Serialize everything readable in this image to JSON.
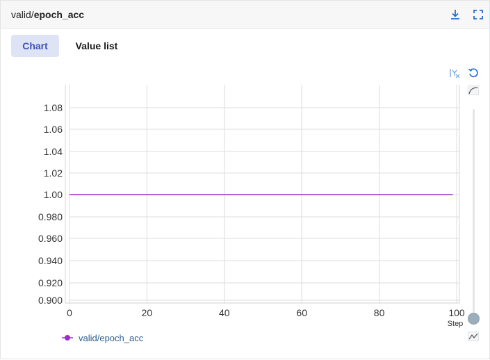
{
  "header": {
    "title_prefix": "valid/",
    "title_bold": "epoch_acc",
    "download_icon": "download-icon",
    "fullscreen_icon": "fullscreen-icon"
  },
  "tabs": [
    {
      "label": "Chart",
      "active": true
    },
    {
      "label": "Value list",
      "active": false
    }
  ],
  "toolbar": {
    "y_axis_icon": "y-axis-scale-icon",
    "reset_icon": "reset-icon",
    "smoothing_icon": "smoothing-icon",
    "line_chart_icon": "line-chart-icon"
  },
  "colors": {
    "series": "#9b2fc8",
    "accent": "#3d53b8",
    "active_tab_bg": "#dfe3f6",
    "grid": "#dcdcdc"
  },
  "chart_data": {
    "type": "line",
    "title": "",
    "xlabel": "Step",
    "ylabel": "",
    "xlim": [
      0,
      100
    ],
    "ylim": [
      0.9,
      1.1
    ],
    "grid": true,
    "legend_position": "bottom-left",
    "x_ticks": [
      0,
      20,
      40,
      60,
      80,
      100
    ],
    "y_ticks": [
      0.9,
      0.92,
      0.94,
      0.96,
      0.98,
      1.0,
      1.02,
      1.04,
      1.06,
      1.08
    ],
    "y_tick_labels": [
      "0.900",
      "0.920",
      "0.940",
      "0.960",
      "0.980",
      "1.00",
      "1.02",
      "1.04",
      "1.06",
      "1.08"
    ],
    "series": [
      {
        "name": "valid/epoch_acc",
        "color": "#9b2fc8",
        "x": [
          0,
          99
        ],
        "y": [
          1.0,
          1.0
        ]
      }
    ]
  }
}
